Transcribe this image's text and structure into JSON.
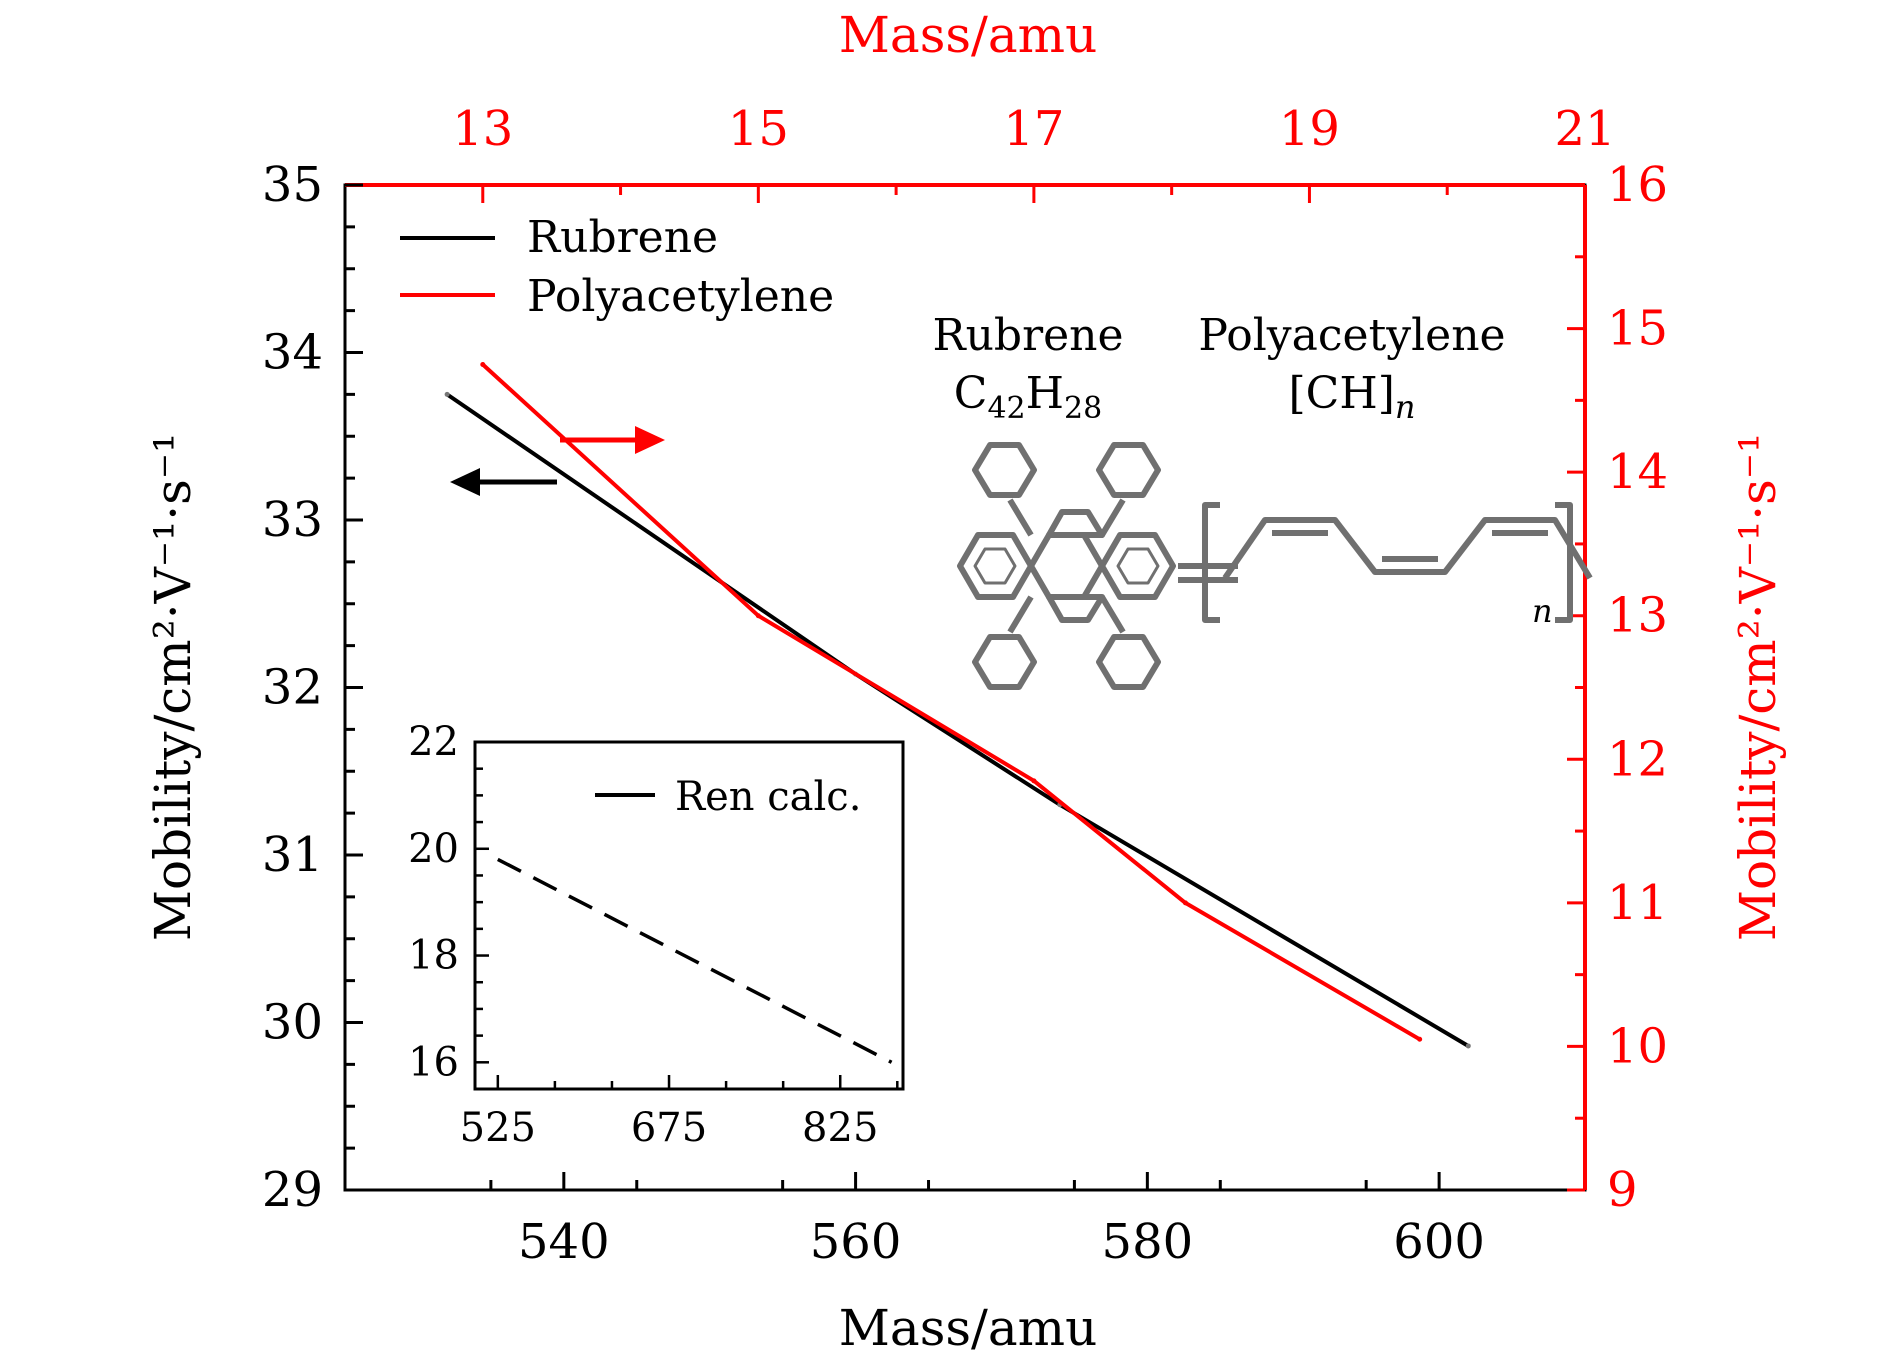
{
  "chart_data": [
    {
      "type": "line",
      "bottom_axis": {
        "label": "Mass/amu",
        "ticks": [
          540,
          560,
          580,
          600
        ],
        "range": [
          525,
          610
        ]
      },
      "top_axis": {
        "label": "Mass/amu",
        "ticks": [
          13,
          15,
          17,
          19,
          21
        ],
        "range": [
          12,
          21
        ]
      },
      "left_axis": {
        "label": "Mobility/cm²·V⁻¹·s⁻¹",
        "ticks": [
          29,
          30,
          31,
          32,
          33,
          34,
          35
        ],
        "range": [
          29,
          35
        ]
      },
      "right_axis": {
        "label": "Mobility/cm²·V⁻¹·s⁻¹",
        "ticks": [
          9,
          10,
          11,
          12,
          13,
          14,
          15,
          16
        ],
        "range": [
          9,
          16
        ]
      },
      "legend": {
        "placement": "top-left"
      },
      "series": [
        {
          "name": "Rubrene",
          "color": "#000000",
          "x_axis": "bottom",
          "y_axis": "left",
          "points": [
            [
              532,
              33.75
            ],
            [
              560,
              32.08
            ],
            [
              574,
              31.3
            ],
            [
              602,
              29.86
            ]
          ]
        },
        {
          "name": "Polyacetylene",
          "color": "#ff0000",
          "x_axis": "top",
          "y_axis": "right",
          "points": [
            [
              13,
              14.75
            ],
            [
              15,
              13.0
            ],
            [
              17,
              11.85
            ],
            [
              18.1,
              11.0
            ],
            [
              19.8,
              10.05
            ]
          ]
        }
      ],
      "annotations": {
        "arrows": [
          {
            "direction": "left",
            "color": "#000000",
            "points_to": "left axis"
          },
          {
            "direction": "right",
            "color": "#ff0000",
            "points_to": "right axis"
          }
        ],
        "structures": [
          {
            "name": "Rubrene",
            "formula_base": [
              "C",
              "H"
            ],
            "formula_subs": [
              "42",
              "28"
            ]
          },
          {
            "name": "Polyacetylene",
            "formula_base": "[CH]",
            "formula_sub": "n"
          }
        ]
      }
    },
    {
      "type": "line",
      "x_ticks": [
        525,
        675,
        825
      ],
      "y_ticks": [
        16,
        18,
        20,
        22
      ],
      "xlim": [
        505,
        880
      ],
      "ylim": [
        15.5,
        22
      ],
      "legend": {
        "placement": "top-right"
      },
      "series": [
        {
          "name": "Ren calc.",
          "color": "#000000",
          "style": "dashed",
          "points": [
            [
              525,
              19.8
            ],
            [
              870,
              16.0
            ]
          ]
        }
      ]
    }
  ],
  "colors": {
    "axis_primary": "#000000",
    "axis_secondary": "#ff0000",
    "structure": "#707070"
  }
}
